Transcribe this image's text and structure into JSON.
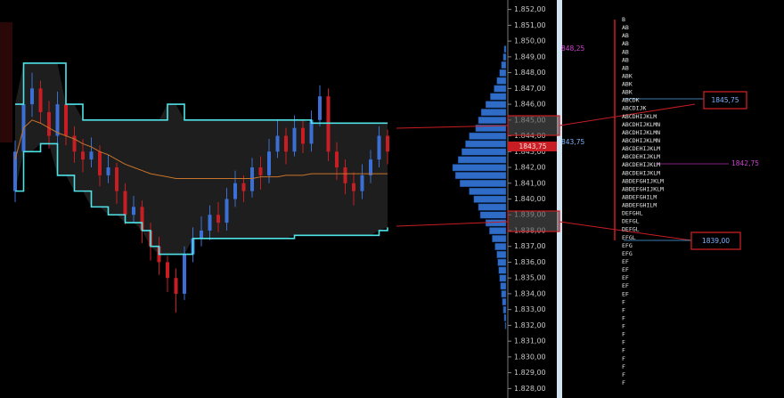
{
  "chart_data": {
    "type": "candlestick",
    "ylim": [
      1827.4,
      1852.6
    ],
    "yticks": [
      {
        "value": 1852,
        "label": "1.852,00"
      },
      {
        "value": 1851,
        "label": "1.851,00"
      },
      {
        "value": 1850,
        "label": "1.850,00"
      },
      {
        "value": 1849,
        "label": "1.849,00"
      },
      {
        "value": 1848,
        "label": "1.848,00"
      },
      {
        "value": 1847,
        "label": "1.847,00"
      },
      {
        "value": 1846,
        "label": "1.846,00"
      },
      {
        "value": 1845,
        "label": "1.845,00"
      },
      {
        "value": 1844,
        "label": "1.844,00"
      },
      {
        "value": 1843,
        "label": "1.843,00"
      },
      {
        "value": 1842,
        "label": "1.842,00"
      },
      {
        "value": 1841,
        "label": "1.841,00"
      },
      {
        "value": 1840,
        "label": "1.840,00"
      },
      {
        "value": 1839,
        "label": "1.839,00"
      },
      {
        "value": 1838,
        "label": "1.838,00"
      },
      {
        "value": 1837,
        "label": "1.837,00"
      },
      {
        "value": 1836,
        "label": "1.836,00"
      },
      {
        "value": 1835,
        "label": "1.835,00"
      },
      {
        "value": 1834,
        "label": "1.834,00"
      },
      {
        "value": 1833,
        "label": "1.833,00"
      },
      {
        "value": 1832,
        "label": "1.832,00"
      },
      {
        "value": 1831,
        "label": "1.831,00"
      },
      {
        "value": 1830,
        "label": "1.830,00"
      },
      {
        "value": 1829,
        "label": "1.829,00"
      },
      {
        "value": 1828,
        "label": "1.828,00"
      }
    ],
    "up_color": "#3b6fd6",
    "down_color": "#c81e23",
    "open": [
      1840.5,
      1843,
      1846,
      1847,
      1845.5,
      1844,
      1846,
      1844,
      1843,
      1842.5,
      1843,
      1841.5,
      1842,
      1840.5,
      1839,
      1839.5,
      1838,
      1837,
      1836,
      1835,
      1834,
      1836.5,
      1837.5,
      1838,
      1839,
      1838.5,
      1840,
      1841,
      1840.5,
      1842,
      1841.5,
      1843,
      1844,
      1843,
      1844.5,
      1843.5,
      1845,
      1846.5,
      1843,
      1842,
      1841,
      1840.5,
      1841.5,
      1842.5,
      1844
    ],
    "high": [
      1843.7,
      1847,
      1848,
      1847.5,
      1846.2,
      1846.8,
      1846.5,
      1844.6,
      1843.8,
      1843.9,
      1843.4,
      1842.8,
      1842.3,
      1841,
      1840.2,
      1839.9,
      1838.5,
      1837.6,
      1836.4,
      1835.6,
      1837,
      1838.2,
      1838.9,
      1839.6,
      1839.8,
      1840.7,
      1841.8,
      1841.5,
      1842.6,
      1842.7,
      1843.8,
      1845,
      1844.5,
      1845.3,
      1845,
      1845.6,
      1847.2,
      1847,
      1843.6,
      1842.5,
      1841.7,
      1842.2,
      1843.1,
      1844.6,
      1844.4
    ],
    "low": [
      1839.8,
      1842.5,
      1845.2,
      1844.8,
      1843.2,
      1843.5,
      1843.4,
      1842.3,
      1841.7,
      1842,
      1840.8,
      1841,
      1839.7,
      1838.4,
      1838.5,
      1837.2,
      1836.1,
      1835.2,
      1834.1,
      1832.8,
      1833.6,
      1836,
      1837,
      1837.4,
      1837.9,
      1838,
      1839.5,
      1839.8,
      1840.1,
      1840.6,
      1841,
      1842.6,
      1842.2,
      1842.7,
      1842.9,
      1843,
      1844.6,
      1842.4,
      1841.2,
      1840.3,
      1839.6,
      1840,
      1841,
      1842,
      1842.2
    ],
    "close": [
      1843,
      1846,
      1847,
      1845.5,
      1844,
      1846,
      1844,
      1843,
      1842.5,
      1843,
      1841.5,
      1842,
      1840.5,
      1839,
      1839.5,
      1838,
      1837,
      1836,
      1835,
      1834,
      1836.5,
      1837.5,
      1838,
      1839,
      1838.5,
      1840,
      1841,
      1840.5,
      1842,
      1841.5,
      1843,
      1844,
      1843,
      1844.5,
      1843.5,
      1845,
      1846.5,
      1843,
      1842,
      1841,
      1840.5,
      1841.5,
      1842.5,
      1844,
      1843
    ],
    "series": [
      {
        "color": "#4fe3e8",
        "values": [
          1846,
          1848.6,
          1848.6,
          1848.6,
          1848.6,
          1848.6,
          1846,
          1846,
          1845,
          1845,
          1845,
          1845,
          1845,
          1845,
          1845,
          1845,
          1845,
          1845,
          1846,
          1846,
          1845,
          1845,
          1845,
          1845,
          1845,
          1845,
          1845,
          1845,
          1845,
          1845,
          1845,
          1845,
          1845,
          1845,
          1845,
          1844.8,
          1844.8,
          1844.8,
          1844.8,
          1844.8,
          1844.8,
          1844.8,
          1844.8,
          1844.8,
          1844.8
        ]
      },
      {
        "color": "#4fe3e8",
        "values": [
          1840.5,
          1843,
          1843,
          1843.5,
          1843.5,
          1841.5,
          1841.5,
          1840.5,
          1840.5,
          1839.5,
          1839.5,
          1839,
          1839,
          1838.5,
          1838.5,
          1838,
          1837,
          1836.5,
          1836.5,
          1836.5,
          1836.5,
          1837.5,
          1837.5,
          1837.5,
          1837.5,
          1837.5,
          1837.5,
          1837.5,
          1837.5,
          1837.5,
          1837.5,
          1837.5,
          1837.5,
          1837.7,
          1837.7,
          1837.7,
          1837.7,
          1837.7,
          1837.7,
          1837.7,
          1837.7,
          1837.7,
          1837.7,
          1838,
          1838.2
        ]
      },
      {
        "color": "#c8742a",
        "values": [
          1842.5,
          1844.5,
          1845,
          1844.8,
          1844.5,
          1844.2,
          1844,
          1843.8,
          1843.5,
          1843.3,
          1843,
          1842.8,
          1842.5,
          1842.2,
          1842,
          1841.8,
          1841.6,
          1841.5,
          1841.4,
          1841.3,
          1841.3,
          1841.3,
          1841.3,
          1841.3,
          1841.3,
          1841.3,
          1841.3,
          1841.3,
          1841.3,
          1841.4,
          1841.4,
          1841.4,
          1841.5,
          1841.5,
          1841.5,
          1841.6,
          1841.6,
          1841.6,
          1841.6,
          1841.6,
          1841.6,
          1841.6,
          1841.6,
          1841.6,
          1841.6
        ]
      }
    ],
    "volume_profile": {
      "color": "#2f6cc8",
      "levels": [
        1849.5,
        1849,
        1848.5,
        1848,
        1847.5,
        1847,
        1846.5,
        1846,
        1845.5,
        1845,
        1844.5,
        1844,
        1843.5,
        1843,
        1842.5,
        1842,
        1841.5,
        1841,
        1840.5,
        1840,
        1839.5,
        1839,
        1838.5,
        1838,
        1837.5,
        1837,
        1836.5,
        1836,
        1835.5,
        1835,
        1834.5,
        1834,
        1833.5,
        1833,
        1832.5,
        1832
      ],
      "values": [
        2,
        3,
        5,
        7,
        10,
        13,
        17,
        22,
        27,
        30,
        33,
        40,
        44,
        48,
        52,
        58,
        55,
        50,
        40,
        35,
        30,
        28,
        22,
        18,
        15,
        12,
        10,
        9,
        8,
        7,
        6,
        5,
        4,
        3,
        2,
        1
      ]
    },
    "tpo": [
      "B",
      "AB",
      "AB",
      "AB",
      "AB",
      "AB",
      "AB",
      "ABK",
      "ABK",
      "ABK",
      "ABCDK",
      "ABCDIJK",
      "ABCDHIJKLM",
      "ABCDHIJKLMN",
      "ABCDHIJKLMN",
      "ABCDHIJKLMN",
      "ABCDEHIJKLM",
      "ABCDEHIJKLM",
      "ABCDEHIJKLM",
      "ABCDEHIJKLM",
      "ABDEFGHIJKLM",
      "ABDEFGHIJKLM",
      "ABDEFGHILM",
      "ABDEFGHILM",
      "DEFGHL",
      "DEFGL",
      "DEFGL",
      "EFGL",
      "EFG",
      "EFG",
      "EF",
      "EF",
      "EF",
      "EF",
      "EF",
      "F",
      "F",
      "F",
      "F",
      "F",
      "F",
      "F",
      "F",
      "F",
      "F",
      "F"
    ],
    "annotations": [
      "1845,75",
      "1842,75",
      "1839,00",
      "848,25",
      "843,75",
      "1843,75"
    ]
  }
}
